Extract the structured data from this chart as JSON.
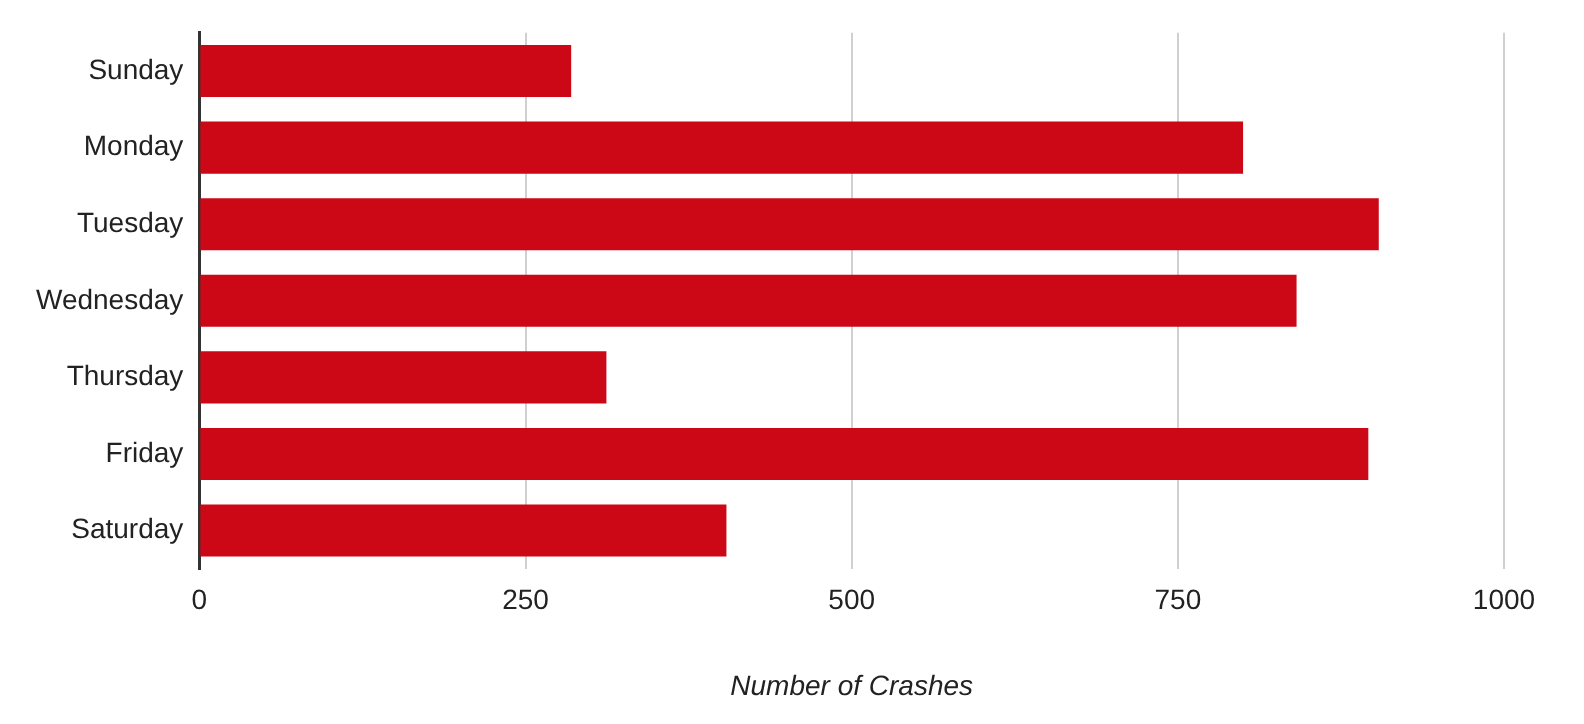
{
  "chart_data": {
    "type": "bar",
    "orientation": "horizontal",
    "xlabel": "Number of Crashes",
    "categories": [
      "Sunday",
      "Monday",
      "Tuesday",
      "Wednesday",
      "Thursday",
      "Friday",
      "Saturday"
    ],
    "values": [
      285,
      800,
      904,
      841,
      312,
      896,
      404
    ],
    "color": "#cc0716",
    "xlim": [
      0,
      1000
    ],
    "xticks": [
      0,
      250,
      500,
      750,
      1000
    ],
    "grid": "x",
    "legend": false
  }
}
